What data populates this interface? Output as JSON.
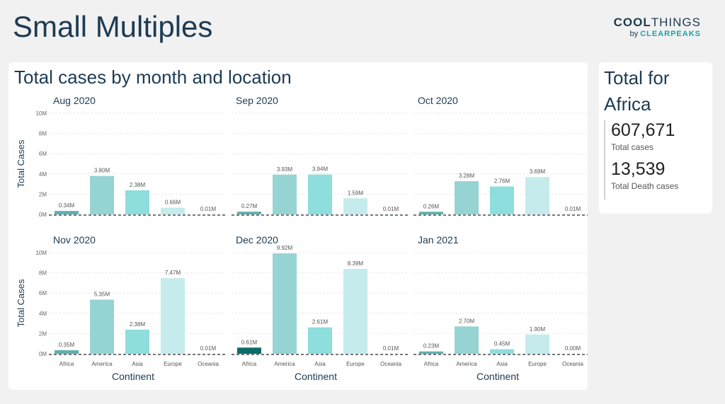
{
  "page_title": "Small Multiples",
  "logo": {
    "line1_bold": "COOL",
    "line1_thin": "THINGS",
    "line2_by": "by ",
    "line2_brand": "CLEARPEAKS"
  },
  "main_panel": {
    "title": "Total cases by month and location"
  },
  "side_panel": {
    "title": "Total for Africa",
    "total_cases_value": "607,671",
    "total_cases_label": "Total cases",
    "total_deaths_value": "13,539",
    "total_deaths_label": "Total Death cases"
  },
  "colors": {
    "Africa": "#5fb0b0",
    "America": "#96d3d3",
    "Asia": "#8ddedd",
    "Europe": "#c5ebec",
    "Oceania": "#d6f1f1",
    "selected": "#0b6b6b"
  },
  "chart_data": {
    "type": "bar",
    "categories": [
      "Africa",
      "America",
      "Asia",
      "Europe",
      "Oceania"
    ],
    "xlabel": "Continent",
    "ylabel": "Total Cases",
    "ylim": [
      0,
      10
    ],
    "yticks": [
      "0M",
      "2M",
      "4M",
      "6M",
      "8M",
      "10M"
    ],
    "grid": true,
    "panels": [
      {
        "title": "Aug 2020",
        "values": [
          0.34,
          3.8,
          2.38,
          0.66,
          0.01
        ],
        "labels": [
          "0.34M",
          "3.80M",
          "2.38M",
          "0.66M",
          "0.01M"
        ]
      },
      {
        "title": "Sep 2020",
        "values": [
          0.27,
          3.93,
          3.94,
          1.59,
          0.01
        ],
        "labels": [
          "0.27M",
          "3.93M",
          "3.94M",
          "1.59M",
          "0.01M"
        ]
      },
      {
        "title": "Oct 2020",
        "values": [
          0.26,
          3.28,
          2.76,
          3.69,
          0.01
        ],
        "labels": [
          "0.26M",
          "3.28M",
          "2.76M",
          "3.69M",
          "0.01M"
        ]
      },
      {
        "title": "Nov 2020",
        "values": [
          0.35,
          5.35,
          2.38,
          7.47,
          0.01
        ],
        "labels": [
          "0.35M",
          "5.35M",
          "2.38M",
          "7.47M",
          "0.01M"
        ]
      },
      {
        "title": "Dec 2020",
        "values": [
          0.61,
          9.92,
          2.61,
          8.39,
          0.01
        ],
        "labels": [
          "0.61M",
          "9.92M",
          "2.61M",
          "8.39M",
          "0.01M"
        ],
        "selected": "Africa"
      },
      {
        "title": "Jan 2021",
        "values": [
          0.23,
          2.7,
          0.45,
          1.9,
          0.0
        ],
        "labels": [
          "0.23M",
          "2.70M",
          "0.45M",
          "1.90M",
          "0.00M"
        ]
      }
    ]
  }
}
